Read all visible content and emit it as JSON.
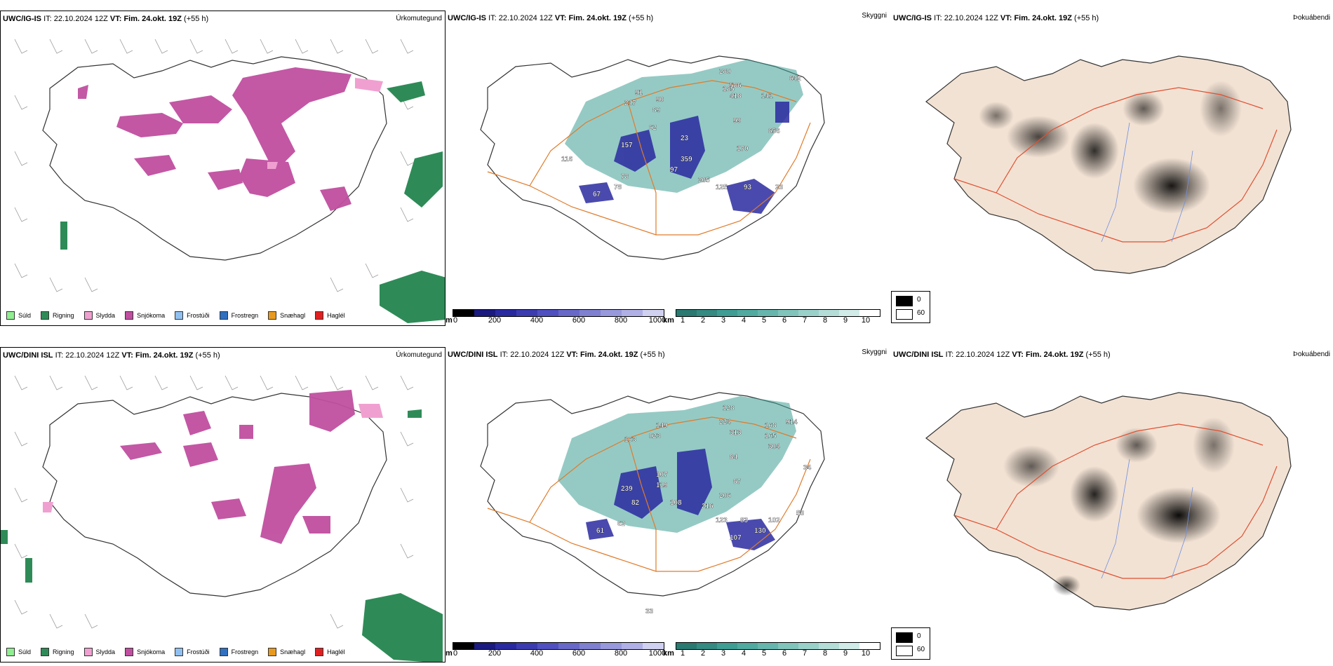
{
  "rows": [
    {
      "model": "UWC/IG-IS",
      "it_label": "IT:",
      "it": "22.10.2024 12Z",
      "vt_label": "VT:",
      "vt": "Fim. 24.okt. 19Z",
      "lead": "(+55 h)",
      "cloud_numbers": [
        "280",
        "642",
        "91",
        "247",
        "90",
        "89",
        "62",
        "185",
        "586",
        "418",
        "141",
        "99",
        "656",
        "170",
        "116",
        "157",
        "23",
        "359",
        "97",
        "205",
        "125",
        "93",
        "78",
        "78",
        "67",
        "23"
      ]
    },
    {
      "model": "UWC/DINI ISL",
      "it_label": "IT:",
      "it": "22.10.2024 12Z",
      "vt_label": "VT:",
      "vt": "Fim. 24.okt. 19Z",
      "lead": "(+55 h)",
      "cloud_numbers": [
        "128",
        "224",
        "313",
        "168",
        "914",
        "165",
        "304",
        "163",
        "149",
        "023",
        "107",
        "119",
        "84",
        "87",
        "239",
        "206",
        "82",
        "108",
        "216",
        "123",
        "83",
        "102",
        "130",
        "62",
        "61",
        "34",
        "53",
        "33",
        "107"
      ]
    }
  ],
  "precip": {
    "title": "Úrkomutegund",
    "legend": [
      {
        "label": "Súld",
        "color": "#90ee90"
      },
      {
        "label": "Rigning",
        "color": "#2e8b57"
      },
      {
        "label": "Slydda",
        "color": "#f0a0d0"
      },
      {
        "label": "Snjókoma",
        "color": "#c04fa0"
      },
      {
        "label": "Frostúði",
        "color": "#90c0f0"
      },
      {
        "label": "Frostregn",
        "color": "#3070c0"
      },
      {
        "label": "Snæhagl",
        "color": "#e89a20"
      },
      {
        "label": "Haglél",
        "color": "#e02020"
      }
    ]
  },
  "cloud": {
    "title": "Skyggni",
    "base_unit": "m",
    "base_ticks": [
      "0",
      "200",
      "400",
      "600",
      "800",
      "1000"
    ],
    "vis_unit": "km",
    "vis_ticks": [
      "1",
      "2",
      "3",
      "4",
      "5",
      "6",
      "7",
      "8",
      "9",
      "10"
    ]
  },
  "fog": {
    "title": "Þokuábendi",
    "legend_values": [
      "0",
      "60"
    ]
  },
  "colors": {
    "snow": "#c04fa0",
    "sleet": "#f0a0d0",
    "rain": "#2e8b57",
    "cloud_low": "#2a2aa0",
    "cloud_teal": "#3e9e94",
    "road": "#e07b2a",
    "land_fog": "#f2e2d4",
    "river": "#7090e0"
  }
}
